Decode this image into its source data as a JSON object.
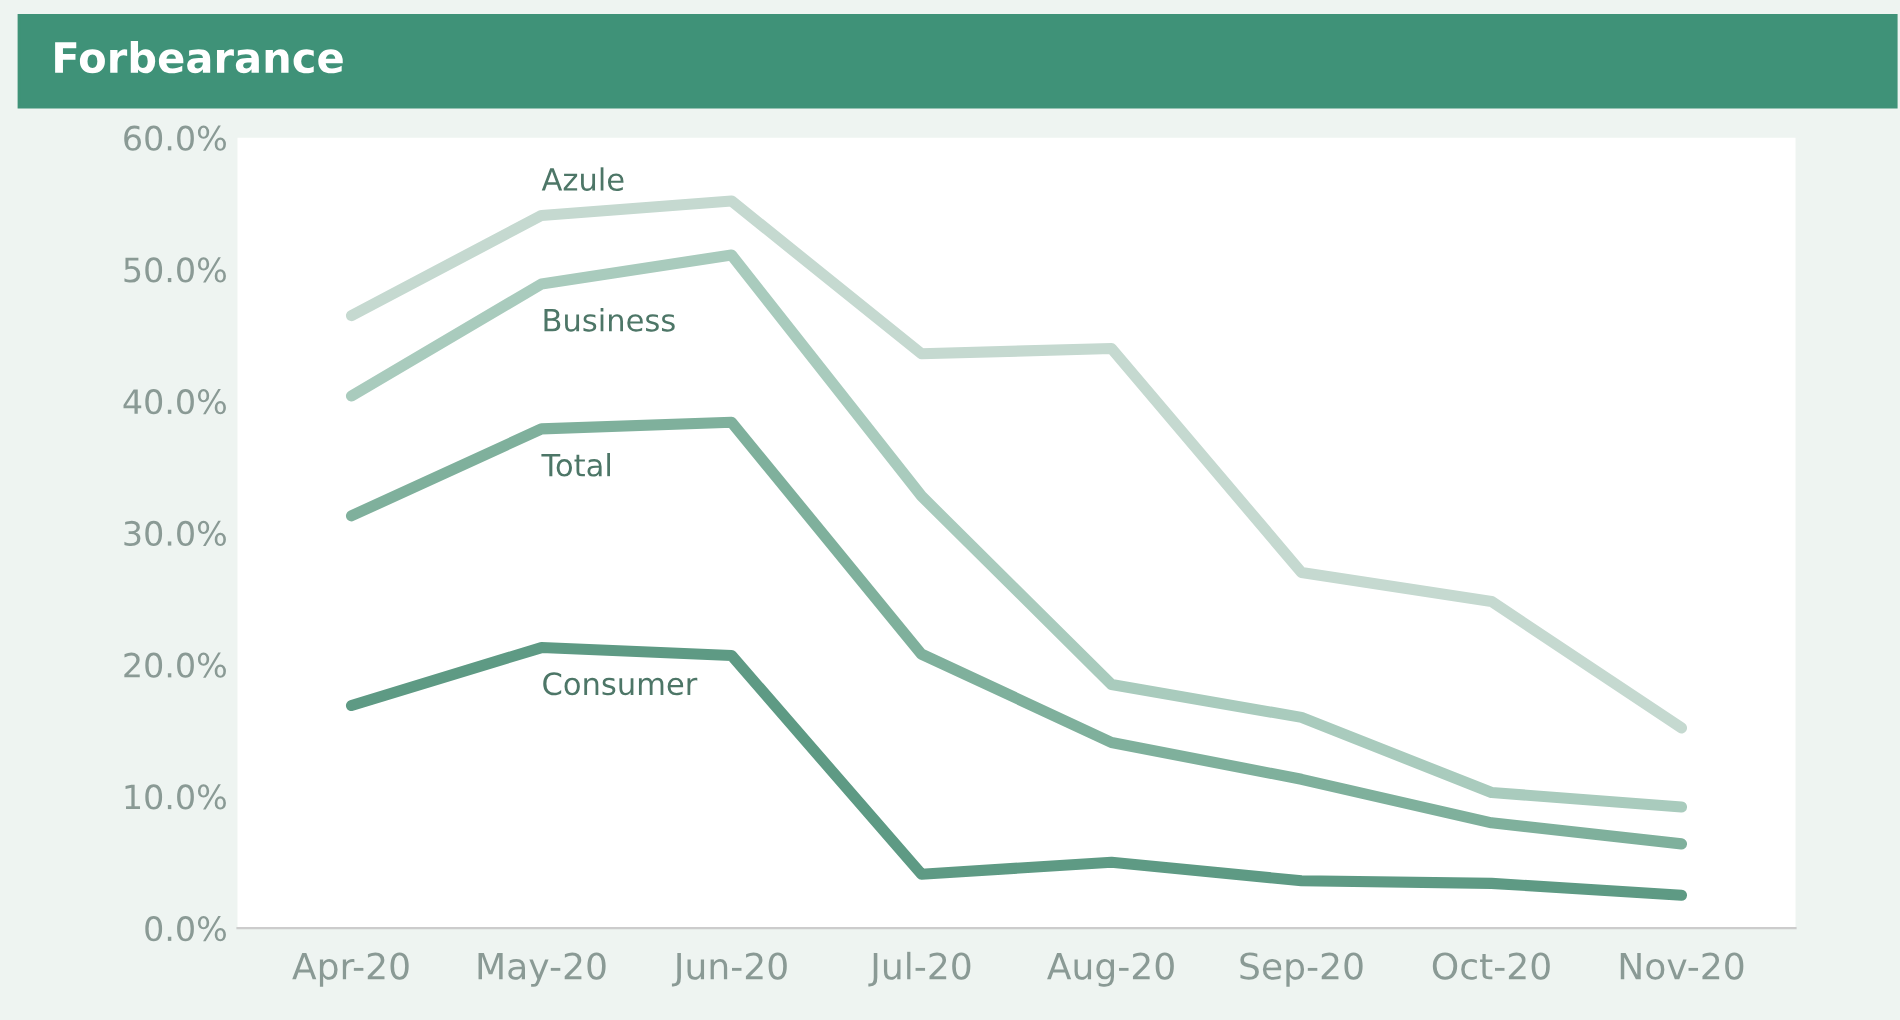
{
  "chart_data": {
    "type": "line",
    "title": "Forbearance",
    "categories": [
      "Apr-20",
      "May-20",
      "Jun-20",
      "Jul-20",
      "Aug-20",
      "Sep-20",
      "Oct-20",
      "Nov-20"
    ],
    "series": [
      {
        "name": "Azule",
        "color": "#c5d9d0",
        "values": [
          46.5,
          54.1,
          55.2,
          43.6,
          44.0,
          27.0,
          24.8,
          15.2
        ]
      },
      {
        "name": "Business",
        "color": "#a9cbbd",
        "values": [
          40.4,
          48.9,
          51.1,
          32.8,
          18.5,
          16.0,
          10.3,
          9.2
        ]
      },
      {
        "name": "Total",
        "color": "#7fb09c",
        "values": [
          31.3,
          37.9,
          38.4,
          20.8,
          14.1,
          11.3,
          8.0,
          6.4
        ]
      },
      {
        "name": "Consumer",
        "color": "#5e9a84",
        "values": [
          16.9,
          21.3,
          20.7,
          4.1,
          5.0,
          3.6,
          3.4,
          2.5
        ]
      }
    ],
    "ylim": [
      0,
      60
    ],
    "yticks": [
      {
        "value": 0,
        "label": "0.0%"
      },
      {
        "value": 10,
        "label": "10.0%"
      },
      {
        "value": 20,
        "label": "20.0%"
      },
      {
        "value": 30,
        "label": "30.0%"
      },
      {
        "value": 40,
        "label": "40.0%"
      },
      {
        "value": 50,
        "label": "50.0%"
      },
      {
        "value": 60,
        "label": "60.0%"
      }
    ],
    "grid": false,
    "legend": false,
    "marker": "none",
    "line_style": "solid"
  }
}
